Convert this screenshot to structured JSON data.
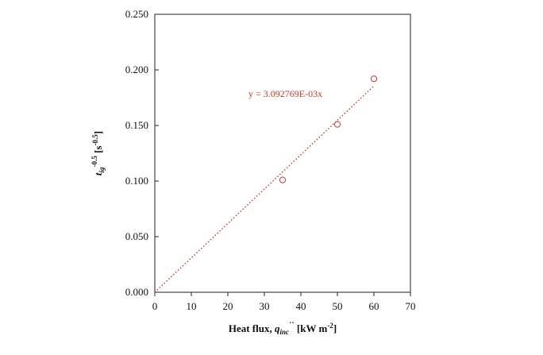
{
  "chart_data": {
    "type": "scatter",
    "x": [
      35,
      50,
      60
    ],
    "y": [
      0.101,
      0.151,
      0.192
    ],
    "trendline": {
      "equation_label": "y = 3.092769E-03x",
      "slope": 0.003092769,
      "intercept": 0,
      "style": "dotted"
    },
    "xlim": [
      0,
      70
    ],
    "ylim": [
      0,
      0.25
    ],
    "x_ticks": [
      "0",
      "10",
      "20",
      "30",
      "40",
      "50",
      "60",
      "70"
    ],
    "y_ticks": [
      "0.000",
      "0.050",
      "0.100",
      "0.150",
      "0.200",
      "0.250"
    ],
    "xlabel": {
      "main": "Heat flux, ",
      "var": "q",
      "var_sub": "inc",
      "var_sup": "˙˙",
      "unit": " [kW m",
      "unit_sup": "-2",
      "unit_end": "]"
    },
    "ylabel": {
      "var": "t",
      "var_sub": "ig",
      "var_sup": "-0.5",
      "unit": " [s",
      "unit_sup": "-0.5",
      "unit_end": "]"
    },
    "grid": false,
    "marker_color": "#c0392b",
    "trendline_color": "#c0392b"
  }
}
